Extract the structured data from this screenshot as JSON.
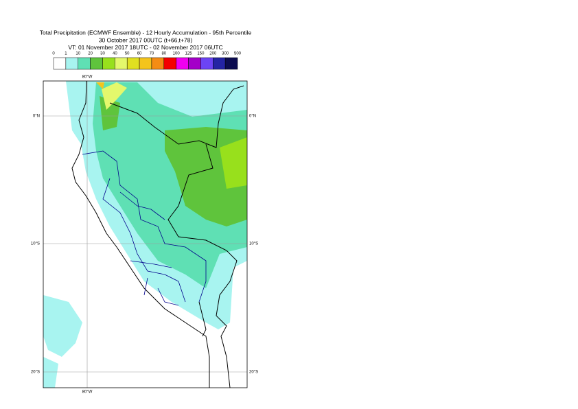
{
  "title": {
    "line1": "Total Precipitation (ECMWF Ensemble) - 12 Hourly Accumulation - 95th Percentile",
    "line2": "30 October 2017 00UTC (t+66,t+78)",
    "line3": "VT: 01 November 2017 18UTC - 02 November 2017 06UTC"
  },
  "legend": {
    "labels": [
      0,
      1,
      10,
      20,
      30,
      40,
      50,
      60,
      70,
      80,
      100,
      125,
      150,
      200,
      300,
      500
    ],
    "colors": [
      "#ffffff",
      "#a8f4f0",
      "#5fe0b4",
      "#5fc43c",
      "#98e01c",
      "#e4f86c",
      "#e0e020",
      "#f4c41c",
      "#f48c14",
      "#f40000",
      "#f000f0",
      "#a400c8",
      "#6c44f4",
      "#2424a4",
      "#0c0c50"
    ]
  },
  "map": {
    "longitude_labels": [
      "80°W"
    ],
    "latitude_labels": [
      "0°N",
      "10°S",
      "20°S"
    ]
  }
}
